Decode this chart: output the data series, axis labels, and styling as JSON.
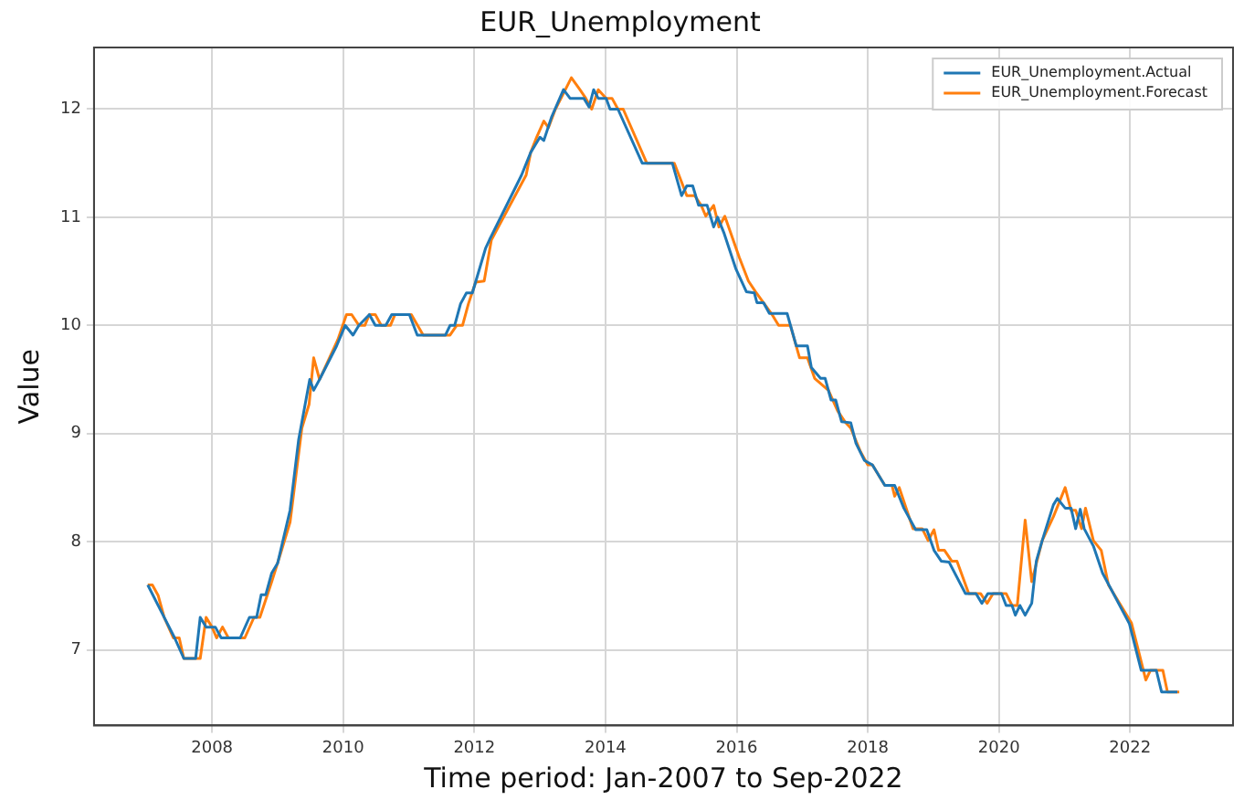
{
  "chart_data": {
    "type": "line",
    "title": "EUR_Unemployment",
    "xlabel": "Time period: Jan-2007 to Sep-2022",
    "ylabel": "Value",
    "xlim": [
      2006.2,
      2023.57
    ],
    "xticks": [
      2008,
      2010,
      2012,
      2014,
      2016,
      2018,
      2020,
      2022
    ],
    "ylim": [
      6.3,
      12.57
    ],
    "yticks": [
      7,
      8,
      9,
      10,
      11,
      12
    ],
    "grid": true,
    "legend": "top right",
    "marker": "none",
    "line_style": "solid",
    "series": [
      {
        "name": "EUR_Unemployment.Actual",
        "color": "#1f77b4",
        "x": [
          2007.02,
          2007.22,
          2007.43,
          2007.57,
          2007.75,
          2007.82,
          2007.91,
          2008.05,
          2008.14,
          2008.43,
          2008.57,
          2008.68,
          2008.75,
          2008.82,
          2008.91,
          2009.0,
          2009.19,
          2009.32,
          2009.49,
          2009.55,
          2009.64,
          2009.9,
          2010.03,
          2010.15,
          2010.24,
          2010.4,
          2010.49,
          2010.65,
          2010.74,
          2011.01,
          2011.13,
          2011.56,
          2011.63,
          2011.7,
          2011.79,
          2011.88,
          2011.97,
          2012.17,
          2012.23,
          2012.72,
          2012.86,
          2013.0,
          2013.06,
          2013.18,
          2013.36,
          2013.46,
          2013.67,
          2013.75,
          2013.82,
          2013.89,
          2014.01,
          2014.07,
          2014.19,
          2014.56,
          2015.02,
          2015.16,
          2015.24,
          2015.33,
          2015.42,
          2015.55,
          2015.65,
          2015.71,
          2015.81,
          2015.99,
          2016.15,
          2016.27,
          2016.31,
          2016.41,
          2016.5,
          2016.77,
          2016.91,
          2017.08,
          2017.14,
          2017.28,
          2017.35,
          2017.44,
          2017.51,
          2017.6,
          2017.74,
          2017.82,
          2017.95,
          2018.07,
          2018.26,
          2018.41,
          2018.55,
          2018.73,
          2018.9,
          2019.01,
          2019.12,
          2019.24,
          2019.49,
          2019.65,
          2019.74,
          2019.83,
          2020.04,
          2020.11,
          2020.2,
          2020.25,
          2020.32,
          2020.4,
          2020.5,
          2020.57,
          2020.66,
          2020.83,
          2020.89,
          2021.01,
          2021.1,
          2021.17,
          2021.24,
          2021.3,
          2021.44,
          2021.58,
          2021.99,
          2022.17,
          2022.4,
          2022.48,
          2022.72
        ],
        "values": [
          7.6,
          7.36,
          7.11,
          6.92,
          6.92,
          7.3,
          7.21,
          7.21,
          7.11,
          7.11,
          7.3,
          7.3,
          7.51,
          7.51,
          7.71,
          7.8,
          8.29,
          8.94,
          9.5,
          9.4,
          9.5,
          9.81,
          10.0,
          9.91,
          10.0,
          10.1,
          10.0,
          10.0,
          10.1,
          10.1,
          9.91,
          9.91,
          10.0,
          10.0,
          10.2,
          10.3,
          10.3,
          10.71,
          10.79,
          11.39,
          11.6,
          11.74,
          11.71,
          11.93,
          12.18,
          12.1,
          12.1,
          12.02,
          12.18,
          12.1,
          12.1,
          12.0,
          12.0,
          11.5,
          11.5,
          11.2,
          11.29,
          11.29,
          11.11,
          11.11,
          10.91,
          11.0,
          10.85,
          10.52,
          10.31,
          10.3,
          10.21,
          10.21,
          10.11,
          10.11,
          9.81,
          9.81,
          9.61,
          9.51,
          9.51,
          9.31,
          9.31,
          9.11,
          9.1,
          8.91,
          8.75,
          8.71,
          8.52,
          8.52,
          8.31,
          8.11,
          8.11,
          7.92,
          7.82,
          7.81,
          7.52,
          7.52,
          7.43,
          7.52,
          7.52,
          7.41,
          7.41,
          7.32,
          7.41,
          7.32,
          7.43,
          7.82,
          8.01,
          8.34,
          8.4,
          8.31,
          8.31,
          8.12,
          8.3,
          8.12,
          7.96,
          7.71,
          7.24,
          6.81,
          6.81,
          6.61,
          6.61
        ]
      },
      {
        "name": "EUR_Unemployment.Forecast",
        "color": "#ff7f0e",
        "x": [
          2007.02,
          2007.09,
          2007.18,
          2007.27,
          2007.41,
          2007.5,
          2007.57,
          2007.82,
          2007.91,
          2008.0,
          2008.07,
          2008.16,
          2008.25,
          2008.5,
          2008.64,
          2008.73,
          2008.91,
          2009.05,
          2009.19,
          2009.37,
          2009.48,
          2009.55,
          2009.64,
          2009.92,
          2010.05,
          2010.13,
          2010.24,
          2010.33,
          2010.4,
          2010.49,
          2010.58,
          2010.72,
          2010.79,
          2011.04,
          2011.22,
          2011.63,
          2011.73,
          2011.82,
          2011.91,
          2012.02,
          2012.15,
          2012.26,
          2012.79,
          2012.86,
          2012.95,
          2013.06,
          2013.13,
          2013.23,
          2013.48,
          2013.61,
          2013.7,
          2013.79,
          2013.89,
          2014.01,
          2014.1,
          2014.19,
          2014.27,
          2014.63,
          2015.05,
          2015.12,
          2015.24,
          2015.36,
          2015.46,
          2015.53,
          2015.65,
          2015.73,
          2015.82,
          2016.04,
          2016.18,
          2016.29,
          2016.53,
          2016.64,
          2016.82,
          2016.96,
          2017.08,
          2017.19,
          2017.4,
          2017.54,
          2017.65,
          2017.74,
          2017.89,
          2018.0,
          2018.07,
          2018.26,
          2018.37,
          2018.41,
          2018.48,
          2018.69,
          2018.83,
          2018.92,
          2019.01,
          2019.08,
          2019.17,
          2019.28,
          2019.36,
          2019.54,
          2019.72,
          2019.82,
          2019.91,
          2020.11,
          2020.2,
          2020.28,
          2020.4,
          2020.5,
          2020.66,
          2020.83,
          2021.01,
          2021.1,
          2021.17,
          2021.26,
          2021.32,
          2021.44,
          2021.56,
          2021.67,
          2022.02,
          2022.24,
          2022.31,
          2022.5,
          2022.57,
          2022.75
        ],
        "values": [
          7.6,
          7.6,
          7.5,
          7.3,
          7.11,
          7.11,
          6.92,
          6.92,
          7.3,
          7.21,
          7.11,
          7.21,
          7.11,
          7.11,
          7.3,
          7.3,
          7.63,
          7.9,
          8.18,
          9.05,
          9.27,
          9.7,
          9.5,
          9.87,
          10.1,
          10.1,
          10.0,
          10.0,
          10.1,
          10.1,
          10.0,
          10.0,
          10.1,
          10.1,
          9.91,
          9.91,
          10.0,
          10.0,
          10.2,
          10.4,
          10.41,
          10.79,
          11.39,
          11.6,
          11.74,
          11.89,
          11.83,
          11.99,
          12.29,
          12.18,
          12.1,
          12.0,
          12.18,
          12.1,
          12.1,
          12.0,
          12.0,
          11.5,
          11.5,
          11.39,
          11.2,
          11.2,
          11.11,
          11.01,
          11.11,
          10.91,
          11.01,
          10.63,
          10.41,
          10.31,
          10.11,
          10.0,
          10.0,
          9.7,
          9.7,
          9.51,
          9.4,
          9.21,
          9.11,
          9.05,
          8.83,
          8.71,
          8.71,
          8.52,
          8.52,
          8.42,
          8.5,
          8.12,
          8.12,
          8.01,
          8.11,
          7.92,
          7.92,
          7.82,
          7.82,
          7.52,
          7.52,
          7.43,
          7.52,
          7.52,
          7.41,
          7.41,
          8.2,
          7.63,
          8.01,
          8.23,
          8.5,
          8.29,
          8.29,
          8.12,
          8.31,
          8.01,
          7.92,
          7.6,
          7.25,
          6.72,
          6.81,
          6.81,
          6.61,
          6.61
        ]
      }
    ]
  }
}
